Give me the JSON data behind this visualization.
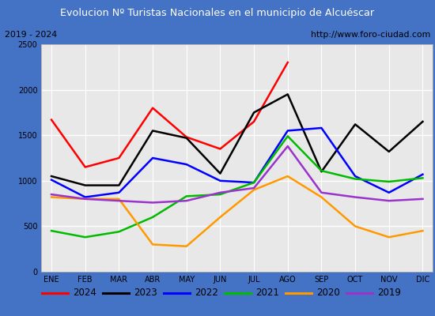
{
  "title": "Evolucion Nº Turistas Nacionales en el municipio de Alcuéscar",
  "subtitle_left": "2019 - 2024",
  "subtitle_right": "http://www.foro-ciudad.com",
  "months": [
    "ENE",
    "FEB",
    "MAR",
    "ABR",
    "MAY",
    "JUN",
    "JUL",
    "AGO",
    "SEP",
    "OCT",
    "NOV",
    "DIC"
  ],
  "series": {
    "2024": {
      "color": "#ff0000",
      "data": [
        1670,
        1150,
        1250,
        1800,
        1480,
        1350,
        1650,
        2300,
        null,
        null,
        null,
        null
      ]
    },
    "2023": {
      "color": "#000000",
      "data": [
        1050,
        950,
        950,
        1550,
        1470,
        1080,
        1750,
        1950,
        1100,
        1620,
        1320,
        1650
      ]
    },
    "2022": {
      "color": "#0000ff",
      "data": [
        1010,
        820,
        870,
        1250,
        1180,
        1000,
        980,
        1550,
        1580,
        1050,
        870,
        1070
      ]
    },
    "2021": {
      "color": "#00bb00",
      "data": [
        450,
        380,
        440,
        600,
        830,
        850,
        980,
        1490,
        1110,
        1020,
        990,
        1030
      ]
    },
    "2020": {
      "color": "#ff9900",
      "data": [
        820,
        800,
        800,
        300,
        280,
        600,
        900,
        1050,
        820,
        500,
        380,
        450
      ]
    },
    "2019": {
      "color": "#9933cc",
      "data": [
        850,
        800,
        780,
        760,
        780,
        870,
        920,
        1380,
        870,
        820,
        780,
        800
      ]
    }
  },
  "ylim": [
    0,
    2500
  ],
  "yticks": [
    0,
    500,
    1000,
    1500,
    2000,
    2500
  ],
  "title_bgcolor": "#4472c4",
  "title_fgcolor": "#ffffff",
  "sub_bgcolor": "#e8e8e8",
  "plot_bgcolor": "#e8e8e8",
  "grid_color": "#ffffff",
  "border_color": "#4472c4",
  "legend_border": "#000000"
}
